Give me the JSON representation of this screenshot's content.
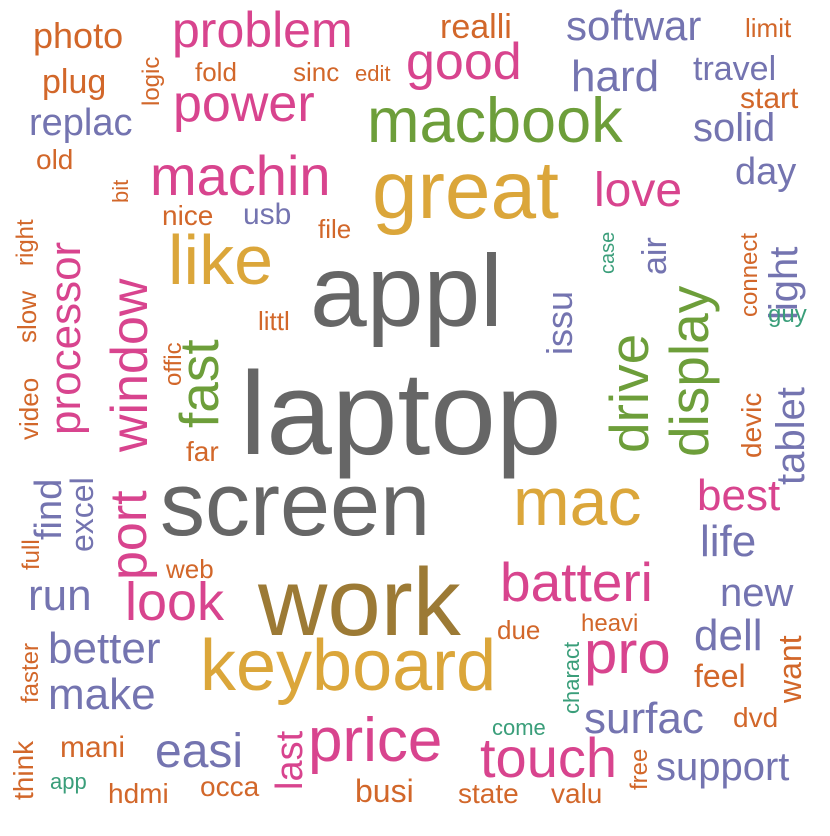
{
  "colors": {
    "gray": "#666666",
    "gold": "#dba63a",
    "green": "#6d9e3a",
    "magenta": "#d8448e",
    "purple": "#7474b0",
    "orange": "#d2672a",
    "brown": "#9c7a35",
    "teal": "#3a9e7a"
  },
  "words": [
    {
      "text": "laptop",
      "color": "gray"
    },
    {
      "text": "appl",
      "color": "gray"
    },
    {
      "text": "screen",
      "color": "gray"
    },
    {
      "text": "work",
      "color": "brown"
    },
    {
      "text": "great",
      "color": "gold"
    },
    {
      "text": "keyboard",
      "color": "gold"
    },
    {
      "text": "mac",
      "color": "gold"
    },
    {
      "text": "like",
      "color": "gold"
    },
    {
      "text": "macbook",
      "color": "green"
    },
    {
      "text": "drive",
      "color": "green"
    },
    {
      "text": "display",
      "color": "green"
    },
    {
      "text": "fast",
      "color": "green"
    },
    {
      "text": "price",
      "color": "magenta"
    },
    {
      "text": "batteri",
      "color": "magenta"
    },
    {
      "text": "pro",
      "color": "magenta"
    },
    {
      "text": "touch",
      "color": "magenta"
    },
    {
      "text": "look",
      "color": "magenta"
    },
    {
      "text": "window",
      "color": "magenta"
    },
    {
      "text": "port",
      "color": "magenta"
    },
    {
      "text": "machin",
      "color": "magenta"
    },
    {
      "text": "power",
      "color": "magenta"
    },
    {
      "text": "problem",
      "color": "magenta"
    },
    {
      "text": "processor",
      "color": "magenta"
    },
    {
      "text": "good",
      "color": "magenta"
    },
    {
      "text": "love",
      "color": "magenta"
    },
    {
      "text": "best",
      "color": "magenta"
    },
    {
      "text": "easi",
      "color": "purple"
    },
    {
      "text": "make",
      "color": "purple"
    },
    {
      "text": "better",
      "color": "purple"
    },
    {
      "text": "surfac",
      "color": "purple"
    },
    {
      "text": "dell",
      "color": "purple"
    },
    {
      "text": "run",
      "color": "purple"
    },
    {
      "text": "hard",
      "color": "purple"
    },
    {
      "text": "softwar",
      "color": "purple"
    },
    {
      "text": "tablet",
      "color": "purple"
    },
    {
      "text": "light",
      "color": "purple"
    },
    {
      "text": "life",
      "color": "purple"
    },
    {
      "text": "new",
      "color": "purple"
    },
    {
      "text": "solid",
      "color": "purple"
    },
    {
      "text": "support",
      "color": "purple"
    },
    {
      "text": "travel",
      "color": "purple"
    },
    {
      "text": "replac",
      "color": "purple"
    },
    {
      "text": "day",
      "color": "purple"
    },
    {
      "text": "usb",
      "color": "purple"
    },
    {
      "text": "issu",
      "color": "purple"
    },
    {
      "text": "find",
      "color": "purple"
    },
    {
      "text": "excel",
      "color": "purple"
    },
    {
      "text": "air",
      "color": "purple"
    },
    {
      "text": "last",
      "color": "magenta"
    },
    {
      "text": "want",
      "color": "orange"
    },
    {
      "text": "feel",
      "color": "orange"
    },
    {
      "text": "dvd",
      "color": "orange"
    },
    {
      "text": "mani",
      "color": "orange"
    },
    {
      "text": "hdmi",
      "color": "orange"
    },
    {
      "text": "busi",
      "color": "orange"
    },
    {
      "text": "nice",
      "color": "orange"
    },
    {
      "text": "littl",
      "color": "orange"
    },
    {
      "text": "far",
      "color": "orange"
    },
    {
      "text": "photo",
      "color": "orange"
    },
    {
      "text": "plug",
      "color": "orange"
    },
    {
      "text": "realli",
      "color": "orange"
    },
    {
      "text": "start",
      "color": "orange"
    },
    {
      "text": "devic",
      "color": "orange"
    },
    {
      "text": "think",
      "color": "orange"
    },
    {
      "text": "old",
      "color": "orange"
    },
    {
      "text": "fold",
      "color": "orange"
    },
    {
      "text": "sinc",
      "color": "orange"
    },
    {
      "text": "edit",
      "color": "orange"
    },
    {
      "text": "limit",
      "color": "orange"
    },
    {
      "text": "logic",
      "color": "orange"
    },
    {
      "text": "file",
      "color": "orange"
    },
    {
      "text": "bit",
      "color": "orange"
    },
    {
      "text": "right",
      "color": "orange"
    },
    {
      "text": "slow",
      "color": "orange"
    },
    {
      "text": "video",
      "color": "orange"
    },
    {
      "text": "offic",
      "color": "orange"
    },
    {
      "text": "connect",
      "color": "orange"
    },
    {
      "text": "full",
      "color": "orange"
    },
    {
      "text": "web",
      "color": "orange"
    },
    {
      "text": "due",
      "color": "orange"
    },
    {
      "text": "heavi",
      "color": "orange"
    },
    {
      "text": "faster",
      "color": "orange"
    },
    {
      "text": "occa",
      "color": "orange"
    },
    {
      "text": "state",
      "color": "orange"
    },
    {
      "text": "valu",
      "color": "orange"
    },
    {
      "text": "free",
      "color": "orange"
    },
    {
      "text": "case",
      "color": "teal"
    },
    {
      "text": "guy",
      "color": "teal"
    },
    {
      "text": "charact",
      "color": "teal"
    },
    {
      "text": "come",
      "color": "teal"
    },
    {
      "text": "app",
      "color": "teal"
    }
  ]
}
